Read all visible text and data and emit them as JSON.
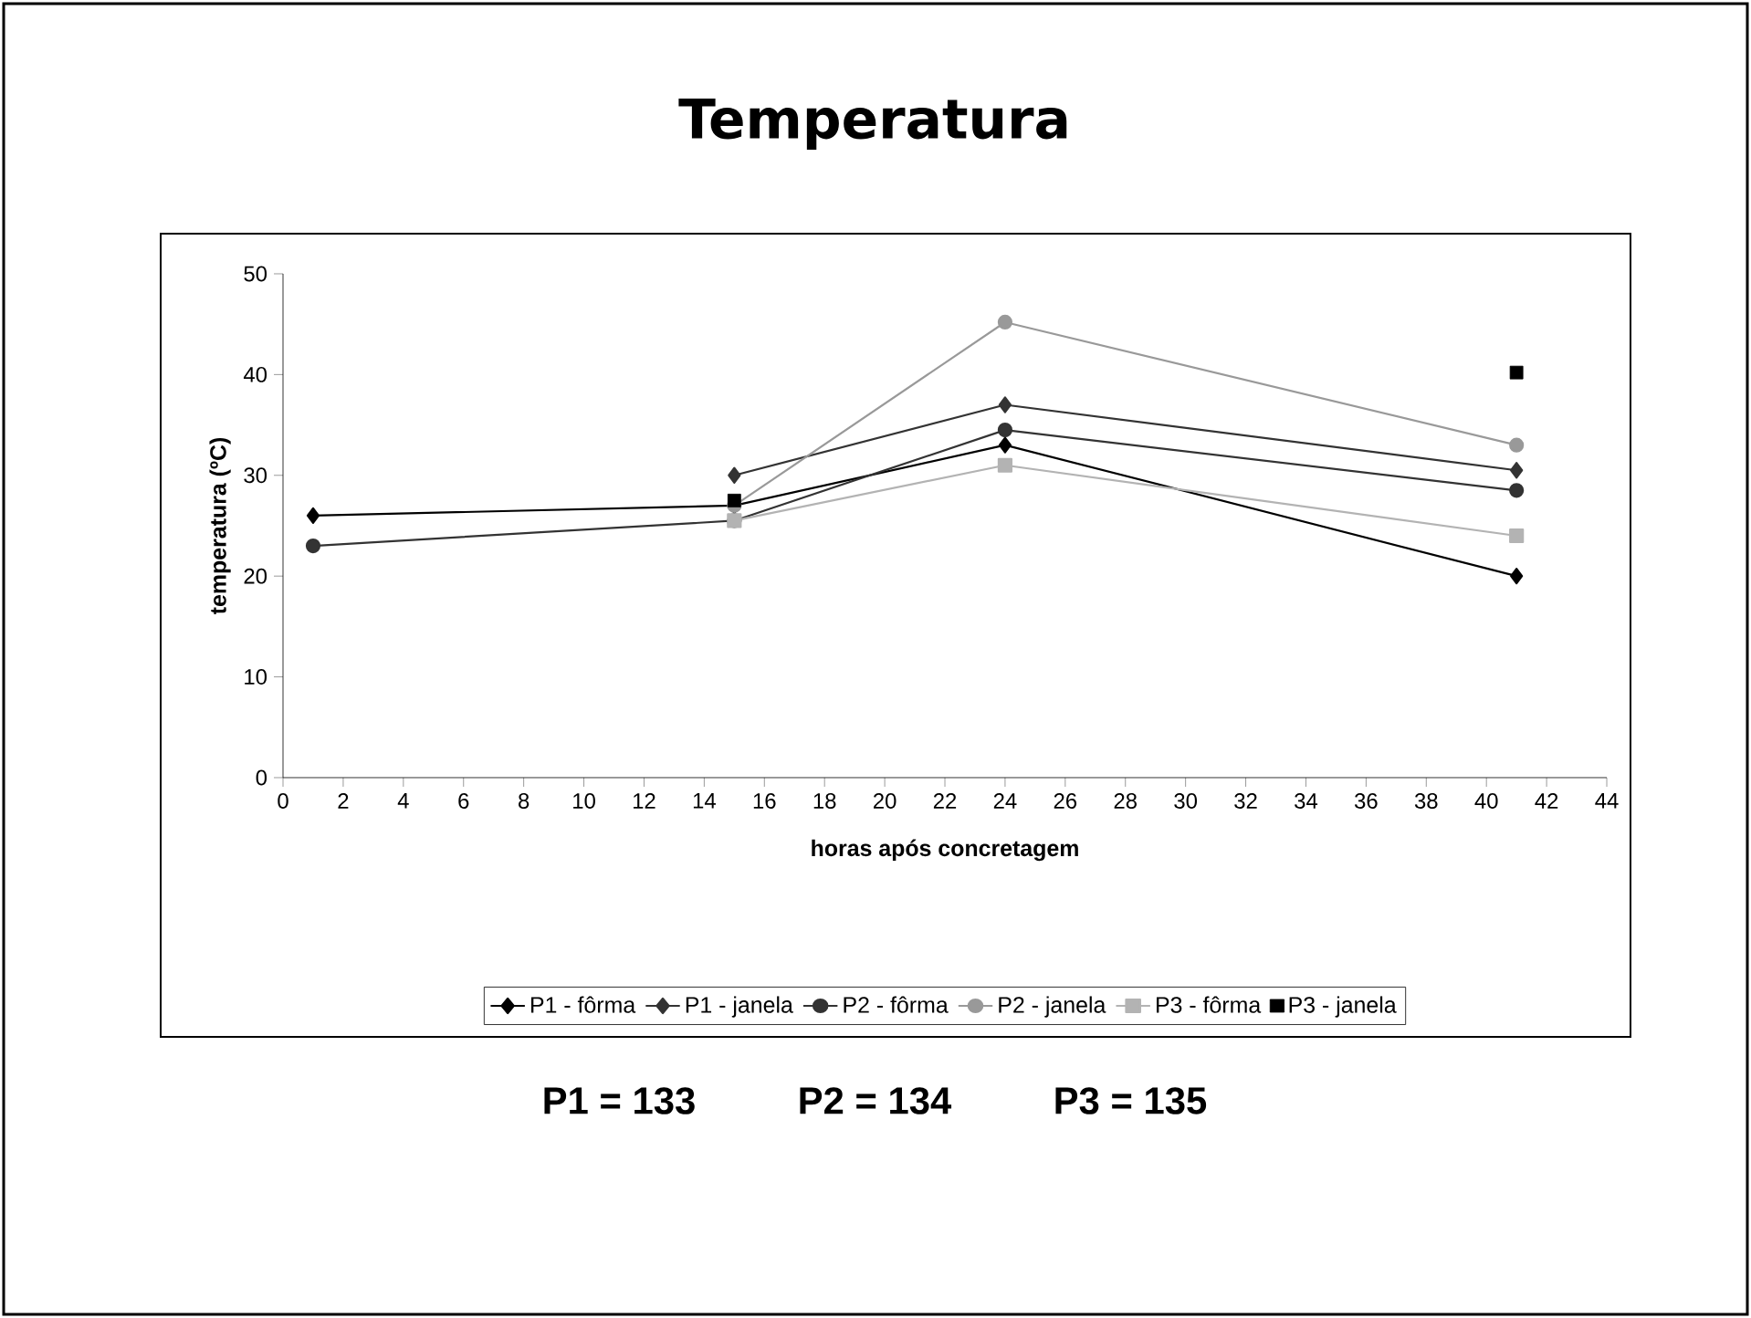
{
  "chart_data": {
    "type": "line",
    "title": "Temperatura",
    "xlabel": "horas após concretagem",
    "ylabel": "temperatura (ºC)",
    "x": [
      1,
      15,
      24,
      41
    ],
    "series": [
      {
        "name": "P1 - fôrma",
        "color": "#000000",
        "marker": "diamond",
        "values": [
          26,
          27,
          33,
          20
        ]
      },
      {
        "name": "P1 - janela",
        "color": "#333333",
        "marker": "diamond",
        "values": [
          null,
          30,
          37,
          30.5
        ]
      },
      {
        "name": "P2 - fôrma",
        "color": "#333333",
        "marker": "circle",
        "values": [
          23,
          25.5,
          34.5,
          28.5
        ]
      },
      {
        "name": "P2 - janela",
        "color": "#999999",
        "marker": "circle",
        "values": [
          null,
          27,
          45.2,
          33
        ]
      },
      {
        "name": "P3 - fôrma",
        "color": "#b3b3b3",
        "marker": "square",
        "values": [
          null,
          25.5,
          31,
          24
        ]
      },
      {
        "name": "P3 - janela",
        "type": "scatter",
        "color": "#000000",
        "marker": "square",
        "x": [
          15,
          41
        ],
        "values": [
          27.5,
          40.2
        ]
      }
    ],
    "xlim": [
      0,
      44
    ],
    "xticks": [
      0,
      2,
      4,
      6,
      8,
      10,
      12,
      14,
      16,
      18,
      20,
      22,
      24,
      26,
      28,
      30,
      32,
      34,
      36,
      38,
      40,
      42,
      44
    ],
    "ylim": [
      0,
      50
    ],
    "yticks": [
      0,
      10,
      20,
      30,
      40,
      50
    ],
    "grid": false,
    "legend": "bottom",
    "line_style": "solid",
    "annotations": [
      "P1 = 133",
      "P2 = 134",
      "P3 = 135"
    ]
  }
}
